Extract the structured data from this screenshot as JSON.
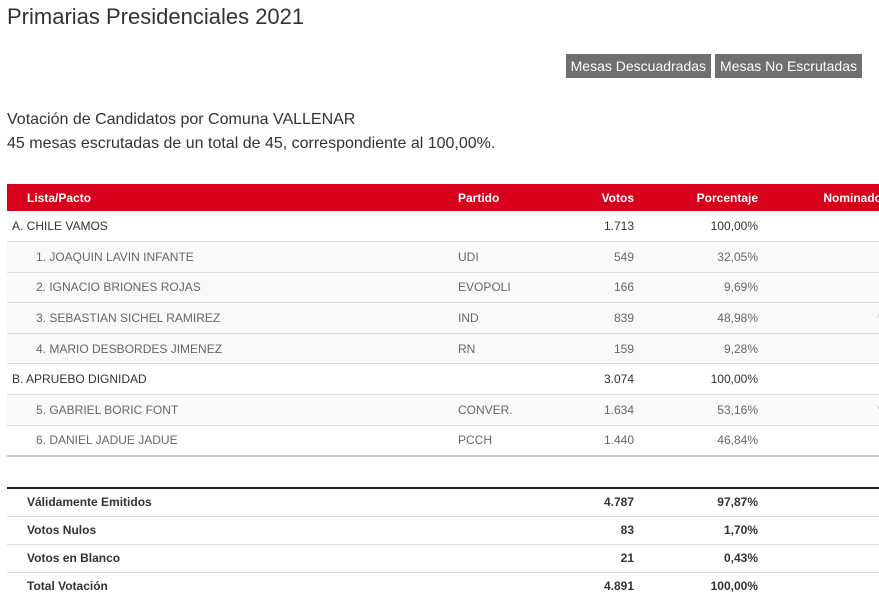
{
  "page_title": "Primarias Presidenciales 2021",
  "buttons": {
    "descuadradas": "Mesas Descuadradas",
    "no_escrutadas": "Mesas No Escrutadas"
  },
  "subtitle": {
    "line1": "Votación de Candidatos por Comuna VALLENAR",
    "line2": "45 mesas escrutadas de un total de 45, correspondiente al 100,00%."
  },
  "table_headers": {
    "lista": "Lista/Pacto",
    "partido": "Partido",
    "votos": "Votos",
    "porcentaje": "Porcentaje",
    "nominado": "Nominado"
  },
  "rows": [
    {
      "type": "pact",
      "name": "A. CHILE VAMOS",
      "party": "",
      "votes": "1.713",
      "pct": "100,00%",
      "nominated": ""
    },
    {
      "type": "cand",
      "name": "1. JOAQUIN LAVIN INFANTE",
      "party": "UDI",
      "votes": "549",
      "pct": "32,05%",
      "nominated": ""
    },
    {
      "type": "cand",
      "name": "2. IGNACIO BRIONES ROJAS",
      "party": "EVOPOLI",
      "votes": "166",
      "pct": "9,69%",
      "nominated": ""
    },
    {
      "type": "cand",
      "name": "3. SEBASTIAN SICHEL RAMIREZ",
      "party": "IND",
      "votes": "839",
      "pct": "48,98%",
      "nominated": "*"
    },
    {
      "type": "cand",
      "name": "4. MARIO DESBORDES JIMENEZ",
      "party": "RN",
      "votes": "159",
      "pct": "9,28%",
      "nominated": ""
    },
    {
      "type": "pact",
      "name": "B. APRUEBO DIGNIDAD",
      "party": "",
      "votes": "3.074",
      "pct": "100,00%",
      "nominated": ""
    },
    {
      "type": "cand",
      "name": "5. GABRIEL BORIC FONT",
      "party": "CONVER.",
      "votes": "1.634",
      "pct": "53,16%",
      "nominated": "*"
    },
    {
      "type": "cand",
      "name": "6. DANIEL JADUE JADUE",
      "party": "PCCH",
      "votes": "1.440",
      "pct": "46,84%",
      "nominated": ""
    }
  ],
  "totals": [
    {
      "label": "Válidamente Emitidos",
      "votes": "4.787",
      "pct": "97,87%"
    },
    {
      "label": "Votos Nulos",
      "votes": "83",
      "pct": "1,70%"
    },
    {
      "label": "Votos en Blanco",
      "votes": "21",
      "pct": "0,43%"
    },
    {
      "label": "Total Votación",
      "votes": "4.891",
      "pct": "100,00%"
    }
  ]
}
